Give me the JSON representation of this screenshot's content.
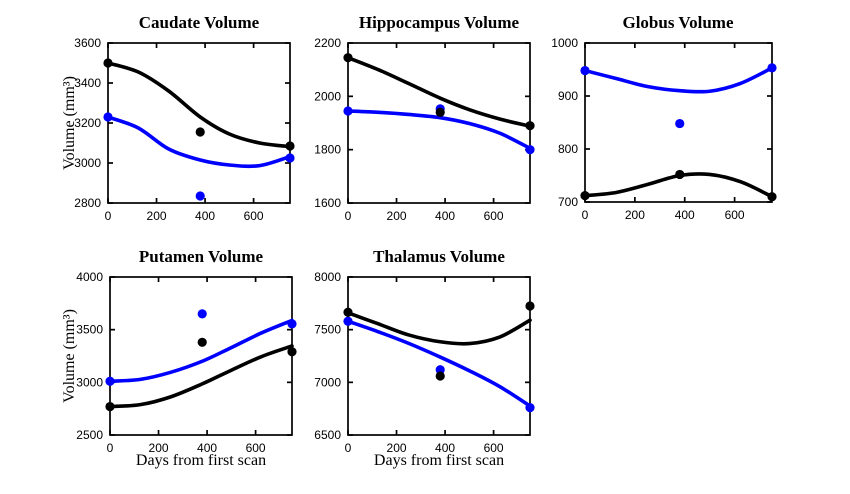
{
  "figure": {
    "background": "#ffffff",
    "curve_colors": {
      "blue": "#0000ff",
      "black": "#000000"
    }
  },
  "chart_data": [
    {
      "id": "caudate",
      "type": "line",
      "title": "Caudate Volume",
      "ylabel": "Volume (mm³)",
      "xlim": [
        0,
        750
      ],
      "ylim": [
        2800,
        3600
      ],
      "xticks": [
        0,
        200,
        400,
        600
      ],
      "yticks": [
        2800,
        3000,
        3200,
        3400,
        3600
      ],
      "series": [
        {
          "name": "blue-series",
          "color": "#0000ff",
          "curve_x": [
            0,
            125,
            250,
            380,
            500,
            625,
            750
          ],
          "curve_y": [
            3230,
            3175,
            3070,
            3015,
            2990,
            2987,
            3032
          ],
          "marker_x": [
            0,
            380,
            750
          ],
          "marker_y": [
            3230,
            2835,
            3025
          ]
        },
        {
          "name": "black-series",
          "color": "#000000",
          "curve_x": [
            0,
            125,
            250,
            380,
            500,
            625,
            750
          ],
          "curve_y": [
            3500,
            3455,
            3360,
            3230,
            3145,
            3100,
            3082
          ],
          "marker_x": [
            0,
            380,
            750
          ],
          "marker_y": [
            3500,
            3155,
            3085
          ]
        }
      ]
    },
    {
      "id": "hippocampus",
      "type": "line",
      "title": "Hippocampus Volume",
      "xlim": [
        0,
        750
      ],
      "ylim": [
        1600,
        2200
      ],
      "xticks": [
        0,
        200,
        400,
        600
      ],
      "yticks": [
        1600,
        1800,
        2000,
        2200
      ],
      "series": [
        {
          "name": "blue-series",
          "color": "#0000ff",
          "curve_x": [
            0,
            125,
            250,
            380,
            500,
            625,
            750
          ],
          "curve_y": [
            1945,
            1940,
            1932,
            1920,
            1898,
            1862,
            1805
          ],
          "marker_x": [
            0,
            380,
            750
          ],
          "marker_y": [
            1945,
            1953,
            1800
          ]
        },
        {
          "name": "black-series",
          "color": "#000000",
          "curve_x": [
            0,
            125,
            250,
            380,
            500,
            625,
            750
          ],
          "curve_y": [
            2145,
            2100,
            2048,
            1993,
            1950,
            1915,
            1888
          ],
          "marker_x": [
            0,
            380,
            750
          ],
          "marker_y": [
            2145,
            1940,
            1890
          ]
        }
      ]
    },
    {
      "id": "globus",
      "type": "line",
      "title": "Globus Volume",
      "xlim": [
        0,
        750
      ],
      "ylim": [
        700,
        1000
      ],
      "xticks": [
        0,
        200,
        400,
        600
      ],
      "yticks": [
        700,
        800,
        900,
        1000
      ],
      "series": [
        {
          "name": "blue-series",
          "color": "#0000ff",
          "curve_x": [
            0,
            125,
            250,
            380,
            500,
            625,
            750
          ],
          "curve_y": [
            948,
            933,
            918,
            910,
            909,
            924,
            953
          ],
          "marker_x": [
            0,
            380,
            750
          ],
          "marker_y": [
            948,
            848,
            953
          ]
        },
        {
          "name": "black-series",
          "color": "#000000",
          "curve_x": [
            0,
            125,
            250,
            380,
            500,
            625,
            750
          ],
          "curve_y": [
            712,
            718,
            733,
            750,
            752,
            738,
            710
          ],
          "marker_x": [
            0,
            380,
            750
          ],
          "marker_y": [
            712,
            752,
            710
          ]
        }
      ]
    },
    {
      "id": "putamen",
      "type": "line",
      "title": "Putamen Volume",
      "ylabel": "Volume (mm³)",
      "xlabel": "Days from first scan",
      "xlim": [
        0,
        750
      ],
      "ylim": [
        2500,
        4000
      ],
      "xticks": [
        0,
        200,
        400,
        600
      ],
      "yticks": [
        2500,
        3000,
        3500,
        4000
      ],
      "series": [
        {
          "name": "blue-series",
          "color": "#0000ff",
          "curve_x": [
            0,
            125,
            250,
            380,
            500,
            625,
            750
          ],
          "curve_y": [
            3010,
            3028,
            3095,
            3200,
            3330,
            3470,
            3588
          ],
          "marker_x": [
            0,
            380,
            750
          ],
          "marker_y": [
            3010,
            3650,
            3555
          ]
        },
        {
          "name": "black-series",
          "color": "#000000",
          "curve_x": [
            0,
            125,
            250,
            380,
            500,
            625,
            750
          ],
          "curve_y": [
            2770,
            2788,
            2862,
            2985,
            3115,
            3245,
            3345
          ],
          "marker_x": [
            0,
            380,
            750
          ],
          "marker_y": [
            2770,
            3380,
            3290
          ]
        }
      ]
    },
    {
      "id": "thalamus",
      "type": "line",
      "title": "Thalamus Volume",
      "xlabel": "Days from first scan",
      "xlim": [
        0,
        750
      ],
      "ylim": [
        6500,
        8000
      ],
      "xticks": [
        0,
        200,
        400,
        600
      ],
      "yticks": [
        6500,
        7000,
        7500,
        8000
      ],
      "series": [
        {
          "name": "blue-series",
          "color": "#0000ff",
          "curve_x": [
            0,
            125,
            250,
            380,
            500,
            625,
            750
          ],
          "curve_y": [
            7580,
            7480,
            7370,
            7240,
            7110,
            6960,
            6775
          ],
          "marker_x": [
            0,
            380,
            750
          ],
          "marker_y": [
            7580,
            7120,
            6760
          ]
        },
        {
          "name": "black-series",
          "color": "#000000",
          "curve_x": [
            0,
            125,
            250,
            380,
            500,
            625,
            750
          ],
          "curve_y": [
            7660,
            7555,
            7450,
            7385,
            7368,
            7430,
            7590
          ],
          "marker_x": [
            0,
            380,
            750
          ],
          "marker_y": [
            7665,
            7060,
            7725
          ]
        }
      ]
    }
  ]
}
